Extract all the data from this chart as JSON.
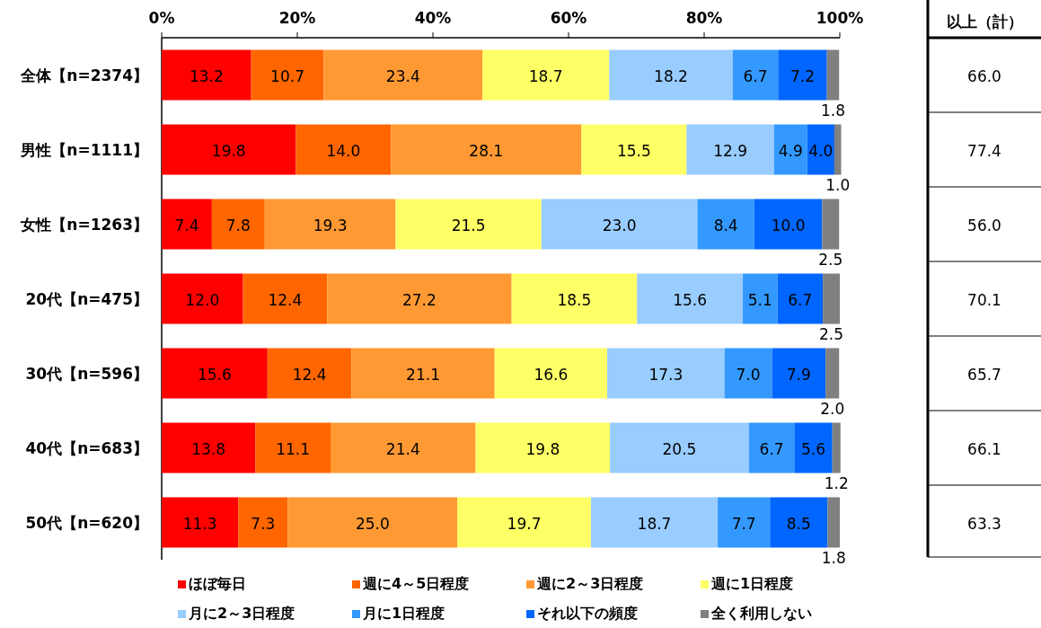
{
  "chart_data": [
    {
      "type": "bar",
      "orientation": "horizontal",
      "stacked": true,
      "legend": "bottom",
      "categories": [
        "全体【n=2374】",
        "男性【n=1111】",
        "女性【n=1263】",
        "20代【n=475】",
        "30代【n=596】",
        "40代【n=683】",
        "50代【n=620】"
      ],
      "xlim": [
        0,
        100
      ],
      "xticks": [
        {
          "value": 0,
          "label": "0%"
        },
        {
          "value": 20,
          "label": "20%"
        },
        {
          "value": 40,
          "label": "40%"
        },
        {
          "value": 60,
          "label": "60%"
        },
        {
          "value": 80,
          "label": "80%"
        },
        {
          "value": 100,
          "label": "100%"
        }
      ],
      "series": [
        {
          "name": "ほぼ毎日",
          "color": "#ff0000",
          "values": [
            13.2,
            19.8,
            7.4,
            12.0,
            15.6,
            13.8,
            11.3
          ],
          "value_labels": [
            "13.2",
            "19.8",
            "7.4",
            "12.0",
            "15.6",
            "13.8",
            "11.3"
          ]
        },
        {
          "name": "週に4～5日程度",
          "color": "#ff6600",
          "values": [
            10.7,
            14.0,
            7.8,
            12.4,
            12.4,
            11.1,
            7.3
          ],
          "value_labels": [
            "10.7",
            "14.0",
            "7.8",
            "12.4",
            "12.4",
            "11.1",
            "7.3"
          ]
        },
        {
          "name": "週に2～3日程度",
          "color": "#ff9933",
          "values": [
            23.4,
            28.1,
            19.3,
            27.2,
            21.1,
            21.4,
            25.0
          ],
          "value_labels": [
            "23.4",
            "28.1",
            "19.3",
            "27.2",
            "21.1",
            "21.4",
            "25.0"
          ]
        },
        {
          "name": "週に1日程度",
          "color": "#ffff66",
          "values": [
            18.7,
            15.5,
            21.5,
            18.5,
            16.6,
            19.8,
            19.7
          ],
          "value_labels": [
            "18.7",
            "15.5",
            "21.5",
            "18.5",
            "16.6",
            "19.8",
            "19.7"
          ]
        },
        {
          "name": "月に2～3日程度",
          "color": "#99ccff",
          "values": [
            18.2,
            12.9,
            23.0,
            15.6,
            17.3,
            20.5,
            18.7
          ],
          "value_labels": [
            "18.2",
            "12.9",
            "23.0",
            "15.6",
            "17.3",
            "20.5",
            "18.7"
          ]
        },
        {
          "name": "月に1日程度",
          "color": "#3399ff",
          "values": [
            6.7,
            4.9,
            8.4,
            5.1,
            7.0,
            6.7,
            7.7
          ],
          "value_labels": [
            "6.7",
            "4.9",
            "8.4",
            "5.1",
            "7.0",
            "6.7",
            "7.7"
          ]
        },
        {
          "name": "それ以下の頻度",
          "color": "#0066ff",
          "values": [
            7.2,
            4.0,
            10.0,
            6.7,
            7.9,
            5.6,
            8.5
          ],
          "value_labels": [
            "7.2",
            "4.0",
            "10.0",
            "6.7",
            "7.9",
            "5.6",
            "8.5"
          ]
        },
        {
          "name": "全く利用しない",
          "color": "#808080",
          "values": [
            1.8,
            1.0,
            2.5,
            2.5,
            2.0,
            1.2,
            1.8
          ],
          "value_labels": [
            "1.8",
            "1.0",
            "2.5",
            "2.5",
            "2.0",
            "1.2",
            "1.8"
          ]
        }
      ]
    },
    {
      "type": "other",
      "title": "以上（計）",
      "annotations": [
        "66.0",
        "77.4",
        "56.0",
        "70.1",
        "65.7",
        "66.1",
        "63.3"
      ]
    }
  ]
}
